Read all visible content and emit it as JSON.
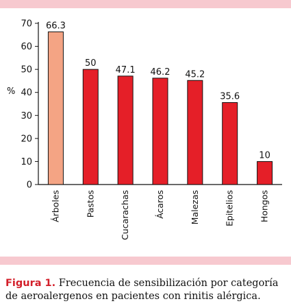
{
  "chart_data": {
    "type": "bar",
    "categories": [
      "Árboles",
      "Pastos",
      "Cucarachas",
      "Ácaros",
      "Malezas",
      "Epitelios",
      "Hongos"
    ],
    "values": [
      66.3,
      50,
      47.1,
      46.2,
      45.2,
      35.6,
      10
    ],
    "value_labels": [
      "66.3",
      "50",
      "47.1",
      "46.2",
      "45.2",
      "35.6",
      "10"
    ],
    "ylabel": "%",
    "xlabel": "",
    "title": "",
    "ylim": [
      0,
      70
    ],
    "yticks": [
      0,
      10,
      20,
      30,
      40,
      50,
      60,
      70
    ],
    "grid": false,
    "legend": "none",
    "colors": {
      "highlight": "#f4a484",
      "bar": "#e51f28",
      "outline": "#111111"
    },
    "highlight_index": 0
  },
  "caption": {
    "tag": "Figura 1.",
    "text": " Frecuencia de sensibilización por categoría de aeroalergenos en pacientes con rinitis alérgica."
  },
  "colors": {
    "band": "#f7c9cf",
    "caption_tag": "#d31f2a"
  }
}
